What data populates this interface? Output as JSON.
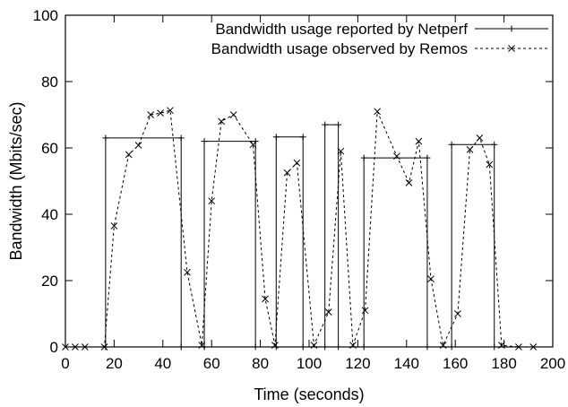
{
  "chart_data": {
    "type": "line",
    "title": "",
    "xlabel": "Time (seconds)",
    "ylabel": "Bandwidth (Mbits/sec)",
    "xlim": [
      0,
      200
    ],
    "ylim": [
      0,
      100
    ],
    "x_ticks": [
      0,
      20,
      40,
      60,
      80,
      100,
      120,
      140,
      160,
      180,
      200
    ],
    "y_ticks": [
      0,
      20,
      40,
      60,
      80,
      100
    ],
    "grid": false,
    "legend_position": "top-right",
    "series": [
      {
        "name": "Bandwidth usage reported by Netperf",
        "style": "solid",
        "marker": "plus",
        "color": "#000000",
        "points": [
          [
            16.5,
            0
          ],
          [
            16.5,
            63
          ],
          [
            47.5,
            63
          ],
          [
            47.5,
            0
          ],
          [
            57,
            0
          ],
          [
            57,
            62
          ],
          [
            78,
            62
          ],
          [
            78,
            0
          ],
          [
            86.5,
            0
          ],
          [
            86.5,
            63.3
          ],
          [
            97.5,
            63.3
          ],
          [
            97.5,
            0
          ],
          [
            106.5,
            0
          ],
          [
            106.5,
            67
          ],
          [
            112,
            67
          ],
          [
            112,
            0
          ],
          [
            122.5,
            0
          ],
          [
            122.5,
            57
          ],
          [
            148.5,
            57
          ],
          [
            148.5,
            0
          ],
          [
            158.5,
            0
          ],
          [
            158.5,
            61
          ],
          [
            176,
            61
          ],
          [
            176,
            0
          ]
        ]
      },
      {
        "name": "Bandwidth usage observed by Remos",
        "style": "dashed",
        "marker": "x",
        "color": "#000000",
        "points": [
          [
            0,
            0
          ],
          [
            4,
            0
          ],
          [
            8,
            0
          ],
          [
            16,
            0
          ],
          [
            20,
            36.5
          ],
          [
            26,
            58
          ],
          [
            30,
            60.8
          ],
          [
            35,
            70
          ],
          [
            39,
            70.5
          ],
          [
            43,
            71.3
          ],
          [
            50,
            22.5
          ],
          [
            56,
            0.5
          ],
          [
            60,
            44
          ],
          [
            64,
            68
          ],
          [
            69,
            70
          ],
          [
            77,
            61
          ],
          [
            82,
            14.5
          ],
          [
            86,
            0.5
          ],
          [
            91,
            52.5
          ],
          [
            95,
            55.5
          ],
          [
            102,
            0.5
          ],
          [
            108,
            10.5
          ],
          [
            113,
            59
          ],
          [
            118,
            0.5
          ],
          [
            123,
            11
          ],
          [
            128,
            71
          ],
          [
            136,
            57.5
          ],
          [
            141,
            49.5
          ],
          [
            145,
            62
          ],
          [
            150,
            20.5
          ],
          [
            155,
            0.5
          ],
          [
            161,
            10
          ],
          [
            166,
            59.5
          ],
          [
            170,
            63
          ],
          [
            174,
            55
          ],
          [
            179,
            0.5
          ],
          [
            186,
            0
          ],
          [
            192,
            0
          ]
        ]
      }
    ]
  }
}
